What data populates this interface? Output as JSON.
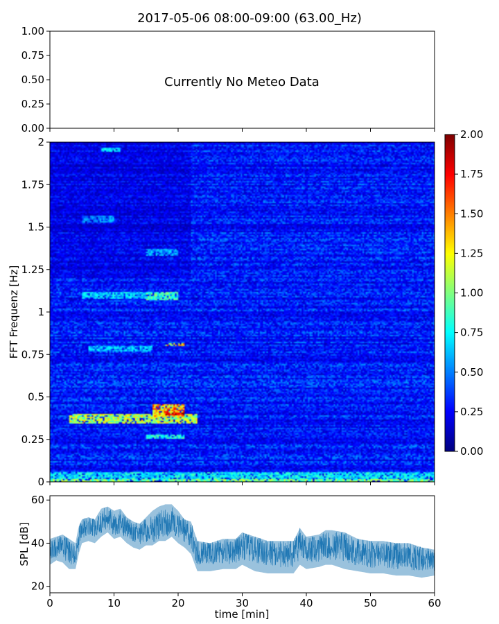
{
  "figure": {
    "title": "2017-05-06 08:00-09:00 (63.00_Hz)"
  },
  "chart_data": [
    {
      "type": "line",
      "panel": "meteo",
      "message": "Currently No Meteo Data",
      "ylim": [
        0,
        1
      ],
      "yticks": [
        "0.00",
        "0.25",
        "0.50",
        "0.75",
        "1.00"
      ],
      "xlim": [
        0,
        60
      ],
      "xlabel": "",
      "ylabel": "",
      "series": []
    },
    {
      "type": "heatmap",
      "panel": "spectrogram",
      "ylabel": "FFT Frequenz [Hz]",
      "xlabel": "",
      "xlim": [
        0,
        60
      ],
      "ylim": [
        0,
        2
      ],
      "yticks": [
        "0",
        "0.25",
        "0.5",
        "0.75",
        "1",
        "1.25",
        "1.5",
        "1.75",
        "2"
      ],
      "colormap": "jet",
      "colorbar": {
        "range": [
          0,
          2
        ],
        "ticks": [
          "0.00",
          "0.25",
          "0.50",
          "0.75",
          "1.00",
          "1.25",
          "1.50",
          "1.75",
          "2.00"
        ]
      },
      "background_level": 0.28,
      "features": [
        {
          "t": [
            0,
            60
          ],
          "f": [
            0,
            0.02
          ],
          "level": 1.0
        },
        {
          "t": [
            0,
            60
          ],
          "f": [
            0.02,
            0.06
          ],
          "level": 0.75
        },
        {
          "t": [
            3,
            23
          ],
          "f": [
            0.34,
            0.4
          ],
          "level": 1.15
        },
        {
          "t": [
            16,
            21
          ],
          "f": [
            0.38,
            0.46
          ],
          "level": 1.5
        },
        {
          "t": [
            18,
            21
          ],
          "f": [
            0.39,
            0.41
          ],
          "level": 1.95
        },
        {
          "t": [
            15,
            20
          ],
          "f": [
            1.07,
            1.12
          ],
          "level": 0.9
        },
        {
          "t": [
            5,
            15
          ],
          "f": [
            1.08,
            1.12
          ],
          "level": 0.7
        },
        {
          "t": [
            18,
            21
          ],
          "f": [
            0.8,
            0.82
          ],
          "level": 1.4
        },
        {
          "t": [
            6,
            16
          ],
          "f": [
            0.77,
            0.8
          ],
          "level": 0.65
        },
        {
          "t": [
            5,
            10
          ],
          "f": [
            1.53,
            1.57
          ],
          "level": 0.55
        },
        {
          "t": [
            8,
            11
          ],
          "f": [
            1.94,
            1.97
          ],
          "level": 0.7
        },
        {
          "t": [
            15,
            20
          ],
          "f": [
            1.33,
            1.37
          ],
          "level": 0.6
        },
        {
          "t": [
            15,
            21
          ],
          "f": [
            0.25,
            0.28
          ],
          "level": 0.8
        }
      ]
    },
    {
      "type": "line",
      "panel": "spl",
      "ylabel": "SPL [dB]",
      "xlabel": "time [min]",
      "xlim": [
        0,
        60
      ],
      "ylim": [
        17,
        62
      ],
      "yticks": [
        "20",
        "40",
        "60"
      ],
      "xticks": [
        "0",
        "10",
        "20",
        "30",
        "40",
        "50",
        "60"
      ],
      "color": "#1f77b4",
      "envelope": {
        "t": [
          0,
          1,
          2,
          3,
          4,
          4.5,
          5,
          6,
          7,
          8,
          9,
          10,
          11,
          12,
          13,
          14,
          15,
          16,
          17,
          18,
          19,
          20,
          21,
          22,
          23,
          25,
          27,
          29,
          30,
          32,
          34,
          36,
          38,
          39,
          40,
          42,
          43,
          44,
          46,
          48,
          50,
          52,
          54,
          56,
          58,
          60
        ],
        "mean": [
          37,
          38,
          39,
          36,
          35,
          42,
          47,
          48,
          47,
          50,
          52,
          49,
          50,
          47,
          45,
          44,
          46,
          46,
          48,
          49,
          51,
          48,
          46,
          44,
          36,
          35,
          36,
          36,
          39,
          37,
          36,
          35,
          35,
          40,
          37,
          37,
          39,
          39,
          38,
          36,
          35,
          35,
          34,
          34,
          33,
          32
        ],
        "low": [
          30,
          32,
          31,
          28,
          28,
          35,
          40,
          41,
          40,
          43,
          45,
          42,
          43,
          40,
          38,
          37,
          39,
          39,
          41,
          41,
          43,
          40,
          38,
          35,
          27,
          27,
          28,
          28,
          30,
          27,
          26,
          26,
          26,
          30,
          28,
          29,
          30,
          30,
          28,
          27,
          26,
          26,
          25,
          25,
          24,
          25
        ],
        "high": [
          42,
          43,
          44,
          42,
          40,
          48,
          51,
          52,
          51,
          56,
          57,
          55,
          56,
          52,
          50,
          49,
          52,
          55,
          57,
          58,
          58,
          55,
          51,
          50,
          41,
          40,
          42,
          42,
          45,
          43,
          41,
          41,
          41,
          47,
          43,
          44,
          46,
          46,
          45,
          42,
          41,
          41,
          40,
          40,
          38,
          37
        ]
      }
    }
  ]
}
